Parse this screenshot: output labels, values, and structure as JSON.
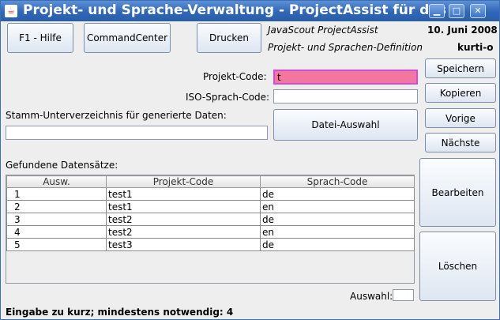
{
  "window": {
    "title": "Projekt- und Sprache-Verwaltung - ProjectAssist für das",
    "icon": "java-icon"
  },
  "toolbar": {
    "help_label": "F1 - Hilfe",
    "commandcenter_label": "CommandCenter",
    "print_label": "Drucken"
  },
  "header": {
    "product": "JavaScout ProjectAssist",
    "subtitle": "Projekt- und Sprachen-Definition",
    "date": "10. Juni 2008",
    "user": "kurti-o"
  },
  "side_buttons": {
    "save": "Speichern",
    "copy": "Kopieren",
    "previous": "Vorige",
    "next": "Nächste",
    "edit": "Bearbeiten",
    "delete": "Löschen"
  },
  "form": {
    "project_code_label": "Projekt-Code:",
    "project_code_value": "t",
    "iso_label": "ISO-Sprach-Code:",
    "iso_value": "",
    "root_dir_label": "Stamm-Unterverzeichnis für generierte Daten:",
    "root_dir_value": "",
    "file_select_label": "Datei-Auswahl",
    "project_code_error_color": "#f2769f"
  },
  "results": {
    "heading": "Gefundene Datensätze:",
    "columns": [
      "Ausw.",
      "Projekt-Code",
      "Sprach-Code"
    ],
    "rows": [
      [
        "1",
        "test1",
        "de"
      ],
      [
        "2",
        "test1",
        "en"
      ],
      [
        "3",
        "test2",
        "de"
      ],
      [
        "4",
        "test2",
        "en"
      ],
      [
        "5",
        "test3",
        "de"
      ]
    ],
    "selection_label": "Auswahl:",
    "selection_value": ""
  },
  "status": {
    "message": "Eingabe zu kurz; mindestens notwendig: 4"
  }
}
